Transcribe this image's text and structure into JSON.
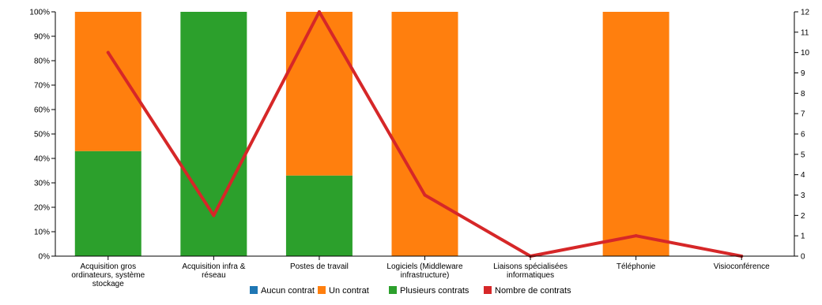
{
  "chart_data": {
    "type": "bar",
    "stacked": true,
    "categories": [
      [
        "Acquisition gros",
        "ordinateurs, système",
        "stockage"
      ],
      [
        "Acquisition infra &",
        "réseau"
      ],
      [
        "Postes de travail"
      ],
      [
        "Logiciels (Middleware",
        "infrastructure)"
      ],
      [
        "Liaisons spécialisées",
        "informatiques"
      ],
      [
        "Téléphonie"
      ],
      [
        "Visioconférence"
      ]
    ],
    "series": [
      {
        "name": "Aucun contrat",
        "values": [
          0,
          0,
          0,
          0,
          0,
          0,
          0
        ],
        "color": "#1f77b4"
      },
      {
        "name": "Un contrat",
        "values": [
          57,
          0,
          67,
          100,
          0,
          100,
          0
        ],
        "color": "#ff7f0e"
      },
      {
        "name": "Plusieurs contrats",
        "values": [
          43,
          100,
          33,
          0,
          0,
          0,
          0
        ],
        "color": "#2ca02c"
      }
    ],
    "line_series": {
      "name": "Nombre de contrats",
      "values": [
        10,
        2,
        12,
        3,
        0,
        1,
        0
      ],
      "color": "#d62728",
      "axis": "right"
    },
    "y_left": {
      "ticks": [
        "0%",
        "10%",
        "20%",
        "30%",
        "40%",
        "50%",
        "60%",
        "70%",
        "80%",
        "90%",
        "100%"
      ],
      "ylim": [
        0,
        100
      ]
    },
    "y_right": {
      "ticks": [
        "0",
        "1",
        "2",
        "3",
        "4",
        "5",
        "6",
        "7",
        "8",
        "9",
        "10",
        "11",
        "12"
      ],
      "ylim": [
        0,
        12
      ]
    },
    "legend_position": "bottom",
    "grid": false
  }
}
